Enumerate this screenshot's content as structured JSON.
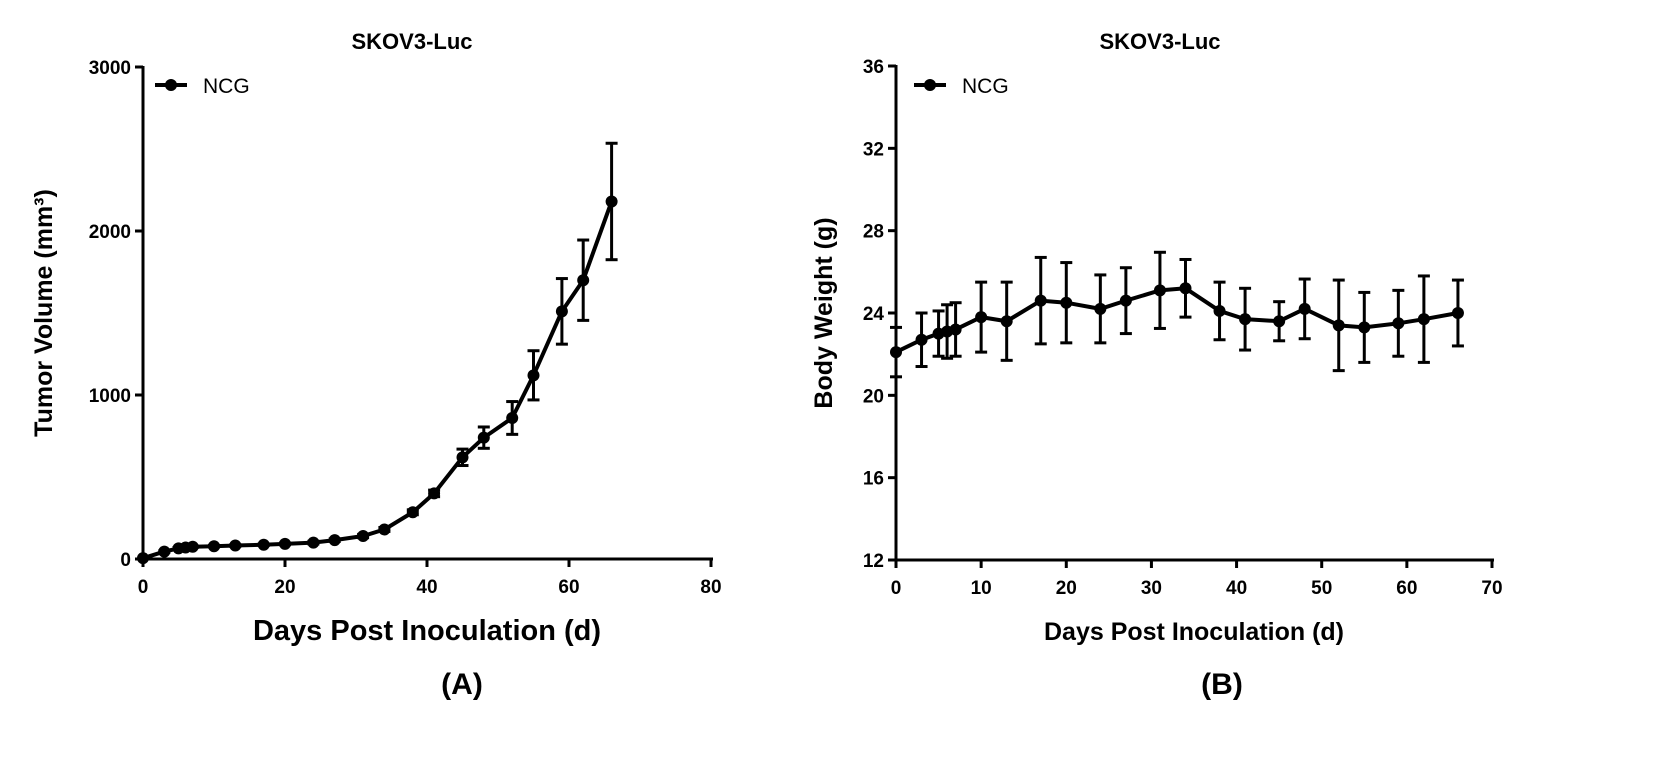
{
  "chart_data": [
    {
      "type": "line",
      "panel_label": "(A)",
      "title": "SKOV3-Luc",
      "xlabel": "Days Post Inoculation (d)",
      "ylabel": "Tumor Volume (mm³)",
      "xlim": [
        0,
        80
      ],
      "ylim": [
        0,
        3000
      ],
      "xticks": [
        0,
        20,
        40,
        60,
        80
      ],
      "yticks": [
        0,
        1000,
        2000,
        3000
      ],
      "legend": "top-left",
      "grid": false,
      "series": [
        {
          "name": "NCG",
          "color": "#000000",
          "x": [
            0,
            3,
            5,
            6,
            7,
            10,
            13,
            17,
            20,
            24,
            27,
            31,
            34,
            38,
            41,
            45,
            48,
            52,
            55,
            59,
            62,
            66
          ],
          "y": [
            5,
            45,
            65,
            70,
            75,
            78,
            82,
            87,
            92,
            100,
            115,
            140,
            180,
            285,
            400,
            620,
            740,
            860,
            1120,
            1510,
            1700,
            2180
          ],
          "err": [
            0,
            5,
            5,
            5,
            5,
            5,
            5,
            5,
            5,
            8,
            8,
            10,
            12,
            15,
            20,
            50,
            65,
            100,
            150,
            200,
            245,
            355
          ]
        }
      ]
    },
    {
      "type": "line",
      "panel_label": "(B)",
      "title": "SKOV3-Luc",
      "xlabel": "Days Post Inoculation (d)",
      "ylabel": "Body Weight (g)",
      "xlim": [
        0,
        70
      ],
      "ylim": [
        12,
        36
      ],
      "xticks": [
        0,
        10,
        20,
        30,
        40,
        50,
        60,
        70
      ],
      "yticks": [
        12,
        16,
        20,
        24,
        28,
        32,
        36
      ],
      "legend": "top-left",
      "grid": false,
      "series": [
        {
          "name": "NCG",
          "color": "#000000",
          "x": [
            0,
            3,
            5,
            6,
            7,
            10,
            13,
            17,
            20,
            24,
            27,
            31,
            34,
            38,
            41,
            45,
            48,
            52,
            55,
            59,
            62,
            66
          ],
          "y": [
            22.1,
            22.7,
            23.0,
            23.1,
            23.2,
            23.8,
            23.6,
            24.6,
            24.5,
            24.2,
            24.6,
            25.1,
            25.2,
            24.1,
            23.7,
            23.6,
            24.2,
            23.4,
            23.3,
            23.5,
            23.7,
            24.0
          ],
          "err": [
            1.2,
            1.3,
            1.1,
            1.3,
            1.3,
            1.7,
            1.9,
            2.1,
            1.95,
            1.65,
            1.6,
            1.85,
            1.4,
            1.4,
            1.5,
            0.95,
            1.45,
            2.2,
            1.7,
            1.6,
            2.1,
            1.6
          ]
        }
      ]
    }
  ]
}
